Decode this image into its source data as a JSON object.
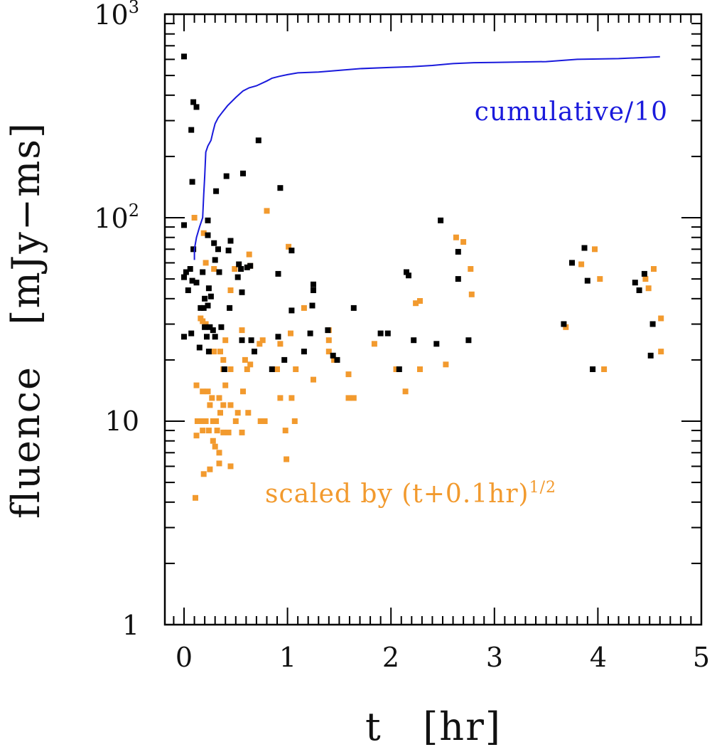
{
  "chart_data": {
    "type": "scatter",
    "title": "",
    "xlabel": "t   [hr]",
    "ylabel": "fluence   [mJy−ms]",
    "xlim": [
      -0.2,
      5.0
    ],
    "ylim": [
      1,
      1000
    ],
    "yscale": "log",
    "x_ticks": [
      "0",
      "1",
      "2",
      "3",
      "4",
      "5"
    ],
    "y_ticks": [
      {
        "base": "1",
        "exp": ""
      },
      {
        "base": "10",
        "exp": ""
      },
      {
        "base": "10",
        "exp": "2"
      },
      {
        "base": "10",
        "exp": "3"
      }
    ],
    "annotations": {
      "cumulative": "cumulative/10",
      "scaled_prefix": "scaled by (t+0.1hr)",
      "scaled_exp": "1/2"
    },
    "colors": {
      "black": "#000000",
      "orange": "#f29a2e",
      "blue": "#1a1adc"
    },
    "series": [
      {
        "name": "fluence",
        "color": "#000000",
        "points": [
          [
            0.0,
            620
          ],
          [
            0.09,
            370
          ],
          [
            0.12,
            350
          ],
          [
            0.07,
            270
          ],
          [
            0.72,
            240
          ],
          [
            0.57,
            165
          ],
          [
            0.41,
            160
          ],
          [
            0.08,
            150
          ],
          [
            0.31,
            135
          ],
          [
            0.93,
            140
          ],
          [
            0.23,
            97
          ],
          [
            0.0,
            92
          ],
          [
            0.23,
            82
          ],
          [
            0.45,
            77
          ],
          [
            0.29,
            75
          ],
          [
            0.09,
            70
          ],
          [
            0.33,
            70
          ],
          [
            0.43,
            69
          ],
          [
            1.04,
            69
          ],
          [
            0.3,
            62
          ],
          [
            0.53,
            59
          ],
          [
            0.64,
            58
          ],
          [
            0.55,
            56
          ],
          [
            0.61,
            57
          ],
          [
            0.06,
            56
          ],
          [
            0.02,
            54
          ],
          [
            0.18,
            54
          ],
          [
            0.34,
            54
          ],
          [
            0.91,
            53
          ],
          [
            0.52,
            51
          ],
          [
            0.0,
            51
          ],
          [
            0.08,
            49
          ],
          [
            0.12,
            48
          ],
          [
            0.24,
            45
          ],
          [
            0.04,
            44
          ],
          [
            0.56,
            43
          ],
          [
            0.26,
            41
          ],
          [
            0.2,
            40
          ],
          [
            0.16,
            36
          ],
          [
            0.19,
            36
          ],
          [
            0.23,
            37
          ],
          [
            0.44,
            36
          ],
          [
            1.04,
            35
          ],
          [
            1.25,
            44
          ],
          [
            1.24,
            37
          ],
          [
            1.64,
            36
          ],
          [
            1.25,
            47
          ],
          [
            0.36,
            29
          ],
          [
            0.2,
            29
          ],
          [
            0.25,
            29
          ],
          [
            0.28,
            28
          ],
          [
            0.07,
            27
          ],
          [
            0.0,
            26
          ],
          [
            0.22,
            26
          ],
          [
            0.3,
            26
          ],
          [
            0.56,
            25
          ],
          [
            0.65,
            25
          ],
          [
            0.91,
            26
          ],
          [
            1.39,
            28
          ],
          [
            1.22,
            27
          ],
          [
            1.97,
            27
          ],
          [
            0.68,
            22
          ],
          [
            0.15,
            23
          ],
          [
            0.24,
            22
          ],
          [
            1.16,
            22
          ],
          [
            1.44,
            21
          ],
          [
            1.48,
            20
          ],
          [
            0.97,
            20
          ],
          [
            0.85,
            18
          ],
          [
            0.39,
            18
          ],
          [
            2.17,
            52
          ],
          [
            2.15,
            54
          ],
          [
            2.48,
            97
          ],
          [
            2.65,
            68
          ],
          [
            2.65,
            50
          ],
          [
            2.08,
            18
          ],
          [
            2.22,
            25
          ],
          [
            2.44,
            24
          ],
          [
            2.75,
            25
          ],
          [
            3.67,
            30
          ],
          [
            3.75,
            60
          ],
          [
            3.87,
            71
          ],
          [
            3.9,
            49
          ],
          [
            3.95,
            18
          ],
          [
            4.36,
            48
          ],
          [
            4.4,
            44
          ],
          [
            4.45,
            53
          ],
          [
            4.53,
            30
          ],
          [
            4.51,
            21
          ],
          [
            1.9,
            27
          ]
        ]
      },
      {
        "name": "scaled by (t+0.1hr)^1/2",
        "color": "#f29a2e",
        "points": [
          [
            0.1,
            100
          ],
          [
            0.19,
            84
          ],
          [
            0.21,
            60
          ],
          [
            0.29,
            56
          ],
          [
            0.45,
            44
          ],
          [
            0.49,
            56
          ],
          [
            0.63,
            66
          ],
          [
            0.64,
            58
          ],
          [
            0.8,
            108
          ],
          [
            1.01,
            72
          ],
          [
            0.16,
            32
          ],
          [
            0.18,
            31
          ],
          [
            0.21,
            30
          ],
          [
            0.29,
            22
          ],
          [
            0.35,
            22
          ],
          [
            0.38,
            20
          ],
          [
            0.4,
            25
          ],
          [
            0.56,
            28
          ],
          [
            0.59,
            20
          ],
          [
            0.61,
            18
          ],
          [
            0.64,
            19
          ],
          [
            0.73,
            24
          ],
          [
            0.76,
            25
          ],
          [
            0.93,
            24
          ],
          [
            1.03,
            27
          ],
          [
            1.16,
            36
          ],
          [
            1.4,
            25
          ],
          [
            1.4,
            28
          ],
          [
            1.4,
            22
          ],
          [
            1.45,
            20
          ],
          [
            0.38,
            18
          ],
          [
            0.45,
            18
          ],
          [
            0.9,
            18
          ],
          [
            1.08,
            18
          ],
          [
            1.25,
            16
          ],
          [
            1.59,
            17
          ],
          [
            1.59,
            13
          ],
          [
            1.64,
            13
          ],
          [
            1.84,
            24
          ],
          [
            2.05,
            18
          ],
          [
            2.14,
            14
          ],
          [
            2.24,
            38
          ],
          [
            2.28,
            39
          ],
          [
            2.28,
            18
          ],
          [
            2.53,
            19
          ],
          [
            2.63,
            80
          ],
          [
            2.7,
            76
          ],
          [
            2.77,
            56
          ],
          [
            2.78,
            42
          ],
          [
            3.69,
            29
          ],
          [
            3.84,
            59
          ],
          [
            3.97,
            70
          ],
          [
            4.02,
            50
          ],
          [
            4.06,
            18
          ],
          [
            4.46,
            50
          ],
          [
            4.49,
            45
          ],
          [
            4.54,
            56
          ],
          [
            4.61,
            32
          ],
          [
            4.61,
            22
          ],
          [
            0.12,
            15
          ],
          [
            0.18,
            14
          ],
          [
            0.23,
            14
          ],
          [
            0.27,
            13
          ],
          [
            0.34,
            13
          ],
          [
            0.38,
            12
          ],
          [
            0.45,
            12
          ],
          [
            0.52,
            11
          ],
          [
            0.57,
            14
          ],
          [
            0.62,
            11
          ],
          [
            0.74,
            10
          ],
          [
            0.78,
            10
          ],
          [
            0.93,
            13
          ],
          [
            1.04,
            13
          ],
          [
            0.13,
            10
          ],
          [
            0.17,
            10
          ],
          [
            0.21,
            10
          ],
          [
            0.28,
            10
          ],
          [
            0.31,
            10
          ],
          [
            0.35,
            11
          ],
          [
            0.5,
            10
          ],
          [
            0.12,
            8.5
          ],
          [
            0.18,
            9
          ],
          [
            0.24,
            9
          ],
          [
            0.28,
            8
          ],
          [
            0.32,
            9
          ],
          [
            0.38,
            8.8
          ],
          [
            0.43,
            8.8
          ],
          [
            0.56,
            8.8
          ],
          [
            0.98,
            9
          ],
          [
            1.07,
            10
          ],
          [
            0.3,
            7.5
          ],
          [
            0.34,
            7
          ],
          [
            0.99,
            6.5
          ],
          [
            0.19,
            5.5
          ],
          [
            0.25,
            5.8
          ],
          [
            0.34,
            6.2
          ],
          [
            0.45,
            6
          ],
          [
            0.11,
            4.2
          ],
          [
            0.25,
            12
          ],
          [
            0.4,
            15
          ]
        ]
      },
      {
        "name": "cumulative/10",
        "type": "line",
        "color": "#1a1adc",
        "points": [
          [
            0.1,
            62
          ],
          [
            0.1,
            70
          ],
          [
            0.12,
            80
          ],
          [
            0.15,
            90
          ],
          [
            0.18,
            100
          ],
          [
            0.19,
            130
          ],
          [
            0.2,
            160
          ],
          [
            0.21,
            210
          ],
          [
            0.23,
            225
          ],
          [
            0.26,
            240
          ],
          [
            0.28,
            265
          ],
          [
            0.3,
            290
          ],
          [
            0.33,
            310
          ],
          [
            0.37,
            330
          ],
          [
            0.42,
            355
          ],
          [
            0.5,
            390
          ],
          [
            0.57,
            420
          ],
          [
            0.63,
            435
          ],
          [
            0.7,
            445
          ],
          [
            0.8,
            470
          ],
          [
            0.85,
            485
          ],
          [
            0.92,
            495
          ],
          [
            1.0,
            505
          ],
          [
            1.1,
            515
          ],
          [
            1.3,
            520
          ],
          [
            1.5,
            530
          ],
          [
            1.7,
            540
          ],
          [
            2.0,
            548
          ],
          [
            2.2,
            552
          ],
          [
            2.4,
            560
          ],
          [
            2.6,
            572
          ],
          [
            2.8,
            578
          ],
          [
            3.0,
            580
          ],
          [
            3.5,
            585
          ],
          [
            3.8,
            600
          ],
          [
            4.2,
            605
          ],
          [
            4.6,
            618
          ]
        ]
      }
    ]
  }
}
